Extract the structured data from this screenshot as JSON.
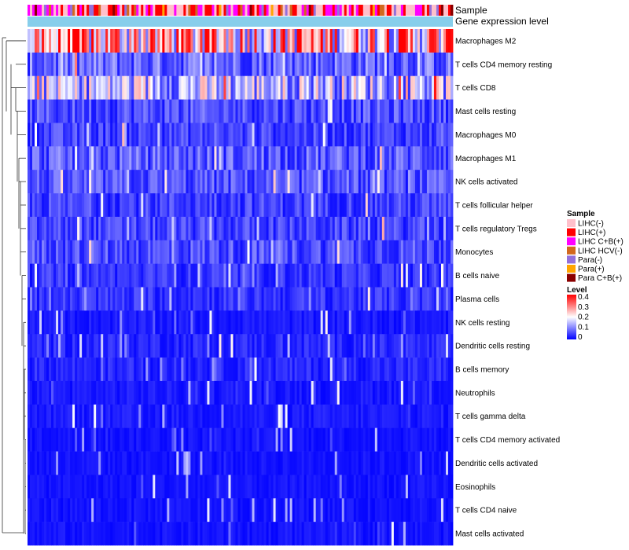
{
  "chart_data": {
    "type": "heatmap",
    "annotation_tracks": [
      "Sample",
      "Gene expression level"
    ],
    "rows": [
      "Macrophages M2",
      "T cells CD4 memory resting",
      "T cells CD8",
      "Mast cells resting",
      "Macrophages M0",
      "Macrophages M1",
      "NK cells activated",
      "T cells follicular helper",
      "T cells regulatory  Tregs",
      "Monocytes",
      "B cells naive",
      "Plasma cells",
      "NK cells resting",
      "Dendritic cells resting",
      "B cells memory",
      "Neutrophils",
      "T cells gamma delta",
      "T cells CD4 memory activated",
      "Dendritic cells activated",
      "Eosinophils",
      "T cells CD4 naive",
      "Mast cells activated"
    ],
    "row_mean_levels": [
      0.25,
      0.08,
      0.15,
      0.06,
      0.05,
      0.07,
      0.06,
      0.05,
      0.05,
      0.06,
      0.04,
      0.04,
      0.02,
      0.03,
      0.03,
      0.02,
      0.02,
      0.015,
      0.015,
      0.015,
      0.015,
      0.015
    ],
    "n_samples": 540,
    "legend": {
      "sample": {
        "title": "Sample",
        "items": [
          {
            "label": "LIHC(-)",
            "color": "#FFC0CB"
          },
          {
            "label": "LIHC(+)",
            "color": "#FF0000"
          },
          {
            "label": "LIHC C+B(+)",
            "color": "#FF00FF"
          },
          {
            "label": "LIHC HCV(-)",
            "color": "#D2691E"
          },
          {
            "label": "Para(-)",
            "color": "#9370DB"
          },
          {
            "label": "Para(+)",
            "color": "#FFA500"
          },
          {
            "label": "Para C+B(+)",
            "color": "#8B0000"
          }
        ]
      },
      "level": {
        "title": "Level",
        "ticks": [
          "0.4",
          "0.3",
          "0.2",
          "0.1",
          "0"
        ],
        "colors": [
          "#0000FF",
          "#FFFFFF",
          "#FF0000"
        ],
        "range": [
          0,
          0.4
        ]
      }
    },
    "expression_track_color": "#87CEEB"
  }
}
